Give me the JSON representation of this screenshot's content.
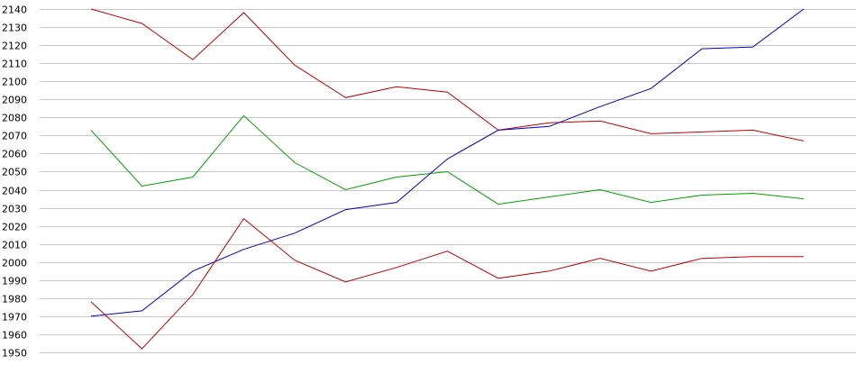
{
  "chart_data": {
    "type": "line",
    "title": "",
    "xlabel": "",
    "ylabel": "",
    "ylim": [
      1950,
      2140
    ],
    "y_ticks": [
      1950,
      1960,
      1970,
      1980,
      1990,
      2000,
      2010,
      2020,
      2030,
      2040,
      2050,
      2060,
      2070,
      2080,
      2090,
      2100,
      2110,
      2120,
      2130,
      2140
    ],
    "grid": true,
    "legend": "none",
    "x": [
      1,
      2,
      3,
      4,
      5,
      6,
      7,
      8,
      9,
      10,
      11,
      12,
      13,
      14,
      15
    ],
    "series": [
      {
        "color": "#c00000",
        "values": [
          2140,
          2132,
          2112,
          2138,
          2109,
          2091,
          2097,
          2094,
          2073,
          2077,
          2078,
          2071,
          2072,
          2073,
          2067
        ]
      },
      {
        "color": "#00a000",
        "values": [
          2073,
          2042,
          2047,
          2081,
          2055,
          2040,
          2047,
          2050,
          2032,
          2036,
          2040,
          2033,
          2037,
          2038,
          2035
        ]
      },
      {
        "color": "#0000c8",
        "values": [
          1970,
          1973,
          1995,
          2007,
          2016,
          2029,
          2033,
          2057,
          2073,
          2075,
          2086,
          2096,
          2118,
          2119,
          2140
        ]
      },
      {
        "color": "#c00000",
        "values": [
          1978,
          1952,
          1982,
          2024,
          2001,
          1989,
          1997,
          2006,
          1991,
          1995,
          2002,
          1995,
          2002,
          2003,
          2003
        ]
      }
    ]
  }
}
